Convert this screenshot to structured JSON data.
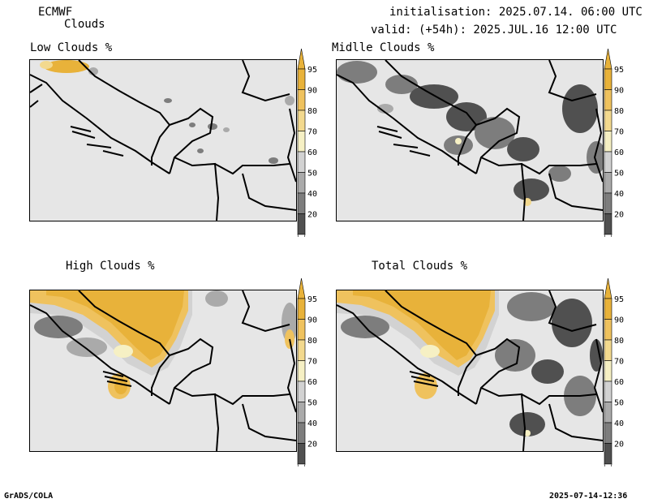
{
  "header": {
    "model": "ECMWF",
    "product": "Clouds",
    "init": "initialisation: 2025.07.14. 06:00 UTC",
    "valid": "valid: (+54h): 2025.JUL.16 12:00 UTC"
  },
  "panels": [
    {
      "title": "Low Clouds %"
    },
    {
      "title": "Midlle Clouds %"
    },
    {
      "title": "High Clouds %"
    },
    {
      "title": "Total Clouds %"
    }
  ],
  "colorbar": {
    "labels": [
      "95",
      "90",
      "80",
      "70",
      "60",
      "50",
      "40",
      "20"
    ],
    "colors": {
      "c95": "#e8b23a",
      "c90": "#efc25e",
      "c80": "#f3d98e",
      "c70": "#f6f0c4",
      "c60": "#d2d2d2",
      "c50": "#aaaaaa",
      "c40": "#7d7d7d",
      "c20": "#505050"
    }
  },
  "footer": {
    "left": "GrADS/COLA",
    "right": "2025-07-14-12:36"
  }
}
